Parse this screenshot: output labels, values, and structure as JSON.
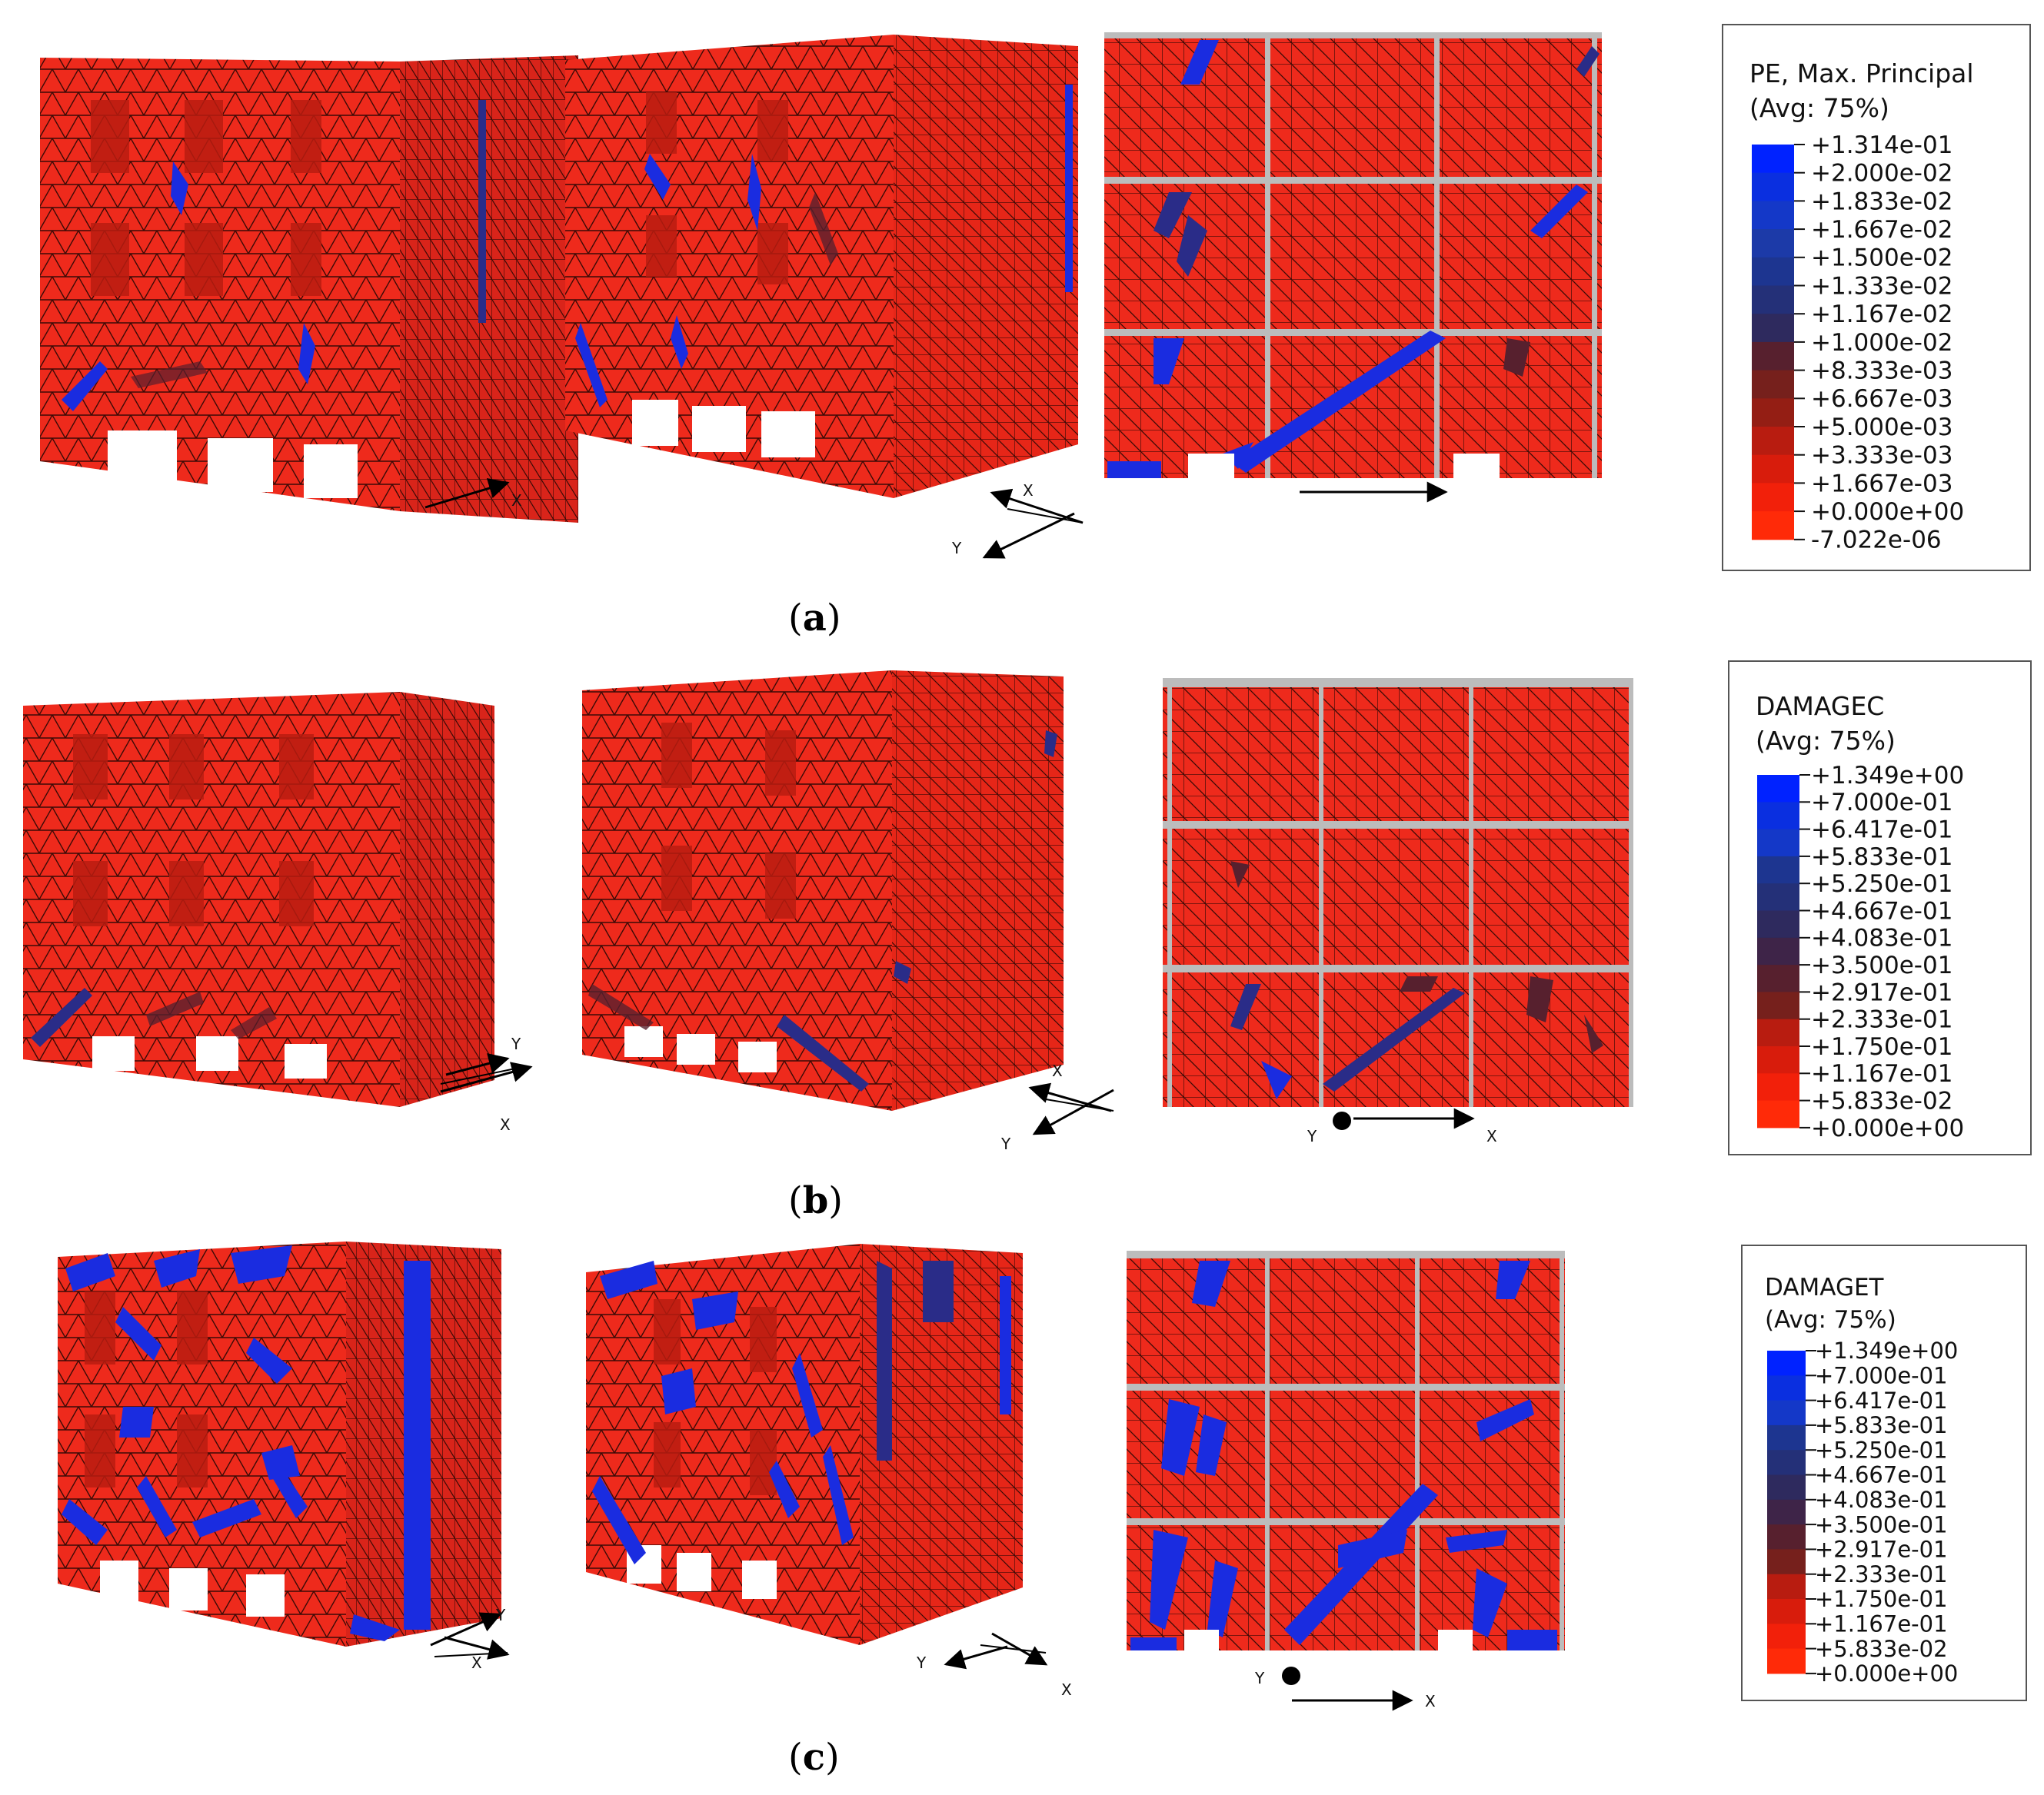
{
  "panels": [
    {
      "caption": "a",
      "legend": {
        "title": "PE, Max. Principal",
        "subtitle": "(Avg: 75%)",
        "values": [
          "+1.314e-01",
          "+2.000e-02",
          "+1.833e-02",
          "+1.667e-02",
          "+1.500e-02",
          "+1.333e-02",
          "+1.167e-02",
          "+1.000e-02",
          "+8.333e-03",
          "+6.667e-03",
          "+5.000e-03",
          "+3.333e-03",
          "+1.667e-03",
          "+0.000e+00",
          "-7.022e-06"
        ]
      },
      "axes": {
        "view1": {
          "x": "X"
        },
        "view2": {
          "x": "X",
          "y": "Y"
        }
      }
    },
    {
      "caption": "b",
      "legend": {
        "title": "DAMAGEC",
        "subtitle": "(Avg: 75%)",
        "values": [
          "+1.349e+00",
          "+7.000e-01",
          "+6.417e-01",
          "+5.833e-01",
          "+5.250e-01",
          "+4.667e-01",
          "+4.083e-01",
          "+3.500e-01",
          "+2.917e-01",
          "+2.333e-01",
          "+1.750e-01",
          "+1.167e-01",
          "+5.833e-02",
          "+0.000e+00"
        ]
      },
      "axes": {
        "view1": {
          "x": "X",
          "y": "Y"
        },
        "view2": {
          "x": "X",
          "y": "Y"
        },
        "view3": {
          "x": "X",
          "y": "Y"
        }
      }
    },
    {
      "caption": "c",
      "legend": {
        "title": "DAMAGET",
        "subtitle": "(Avg: 75%)",
        "values": [
          "+1.349e+00",
          "+7.000e-01",
          "+6.417e-01",
          "+5.833e-01",
          "+5.250e-01",
          "+4.667e-01",
          "+4.083e-01",
          "+3.500e-01",
          "+2.917e-01",
          "+2.333e-01",
          "+1.750e-01",
          "+1.167e-01",
          "+5.833e-02",
          "+0.000e+00"
        ]
      },
      "axes": {
        "view1": {
          "x": "X",
          "y": "Y"
        },
        "view2": {
          "x": "X",
          "y": "Y"
        },
        "view3": {
          "x": "X",
          "y": "Y"
        }
      }
    }
  ],
  "colors": {
    "mesh_red": "#ee2a1c",
    "damage_blue": "#1a2ce0",
    "mesh_line": "#3a0a06",
    "frame_grey": "#a8a8a8"
  },
  "colorbar_colors": [
    "#0022ff",
    "#0a2fe0",
    "#1438c8",
    "#1c3aa8",
    "#1d3590",
    "#243078",
    "#2e2a5e",
    "#3e2448",
    "#57202e",
    "#76201c",
    "#941e14",
    "#b81c10",
    "#d81c0c",
    "#f2200a",
    "#ff2a08"
  ]
}
